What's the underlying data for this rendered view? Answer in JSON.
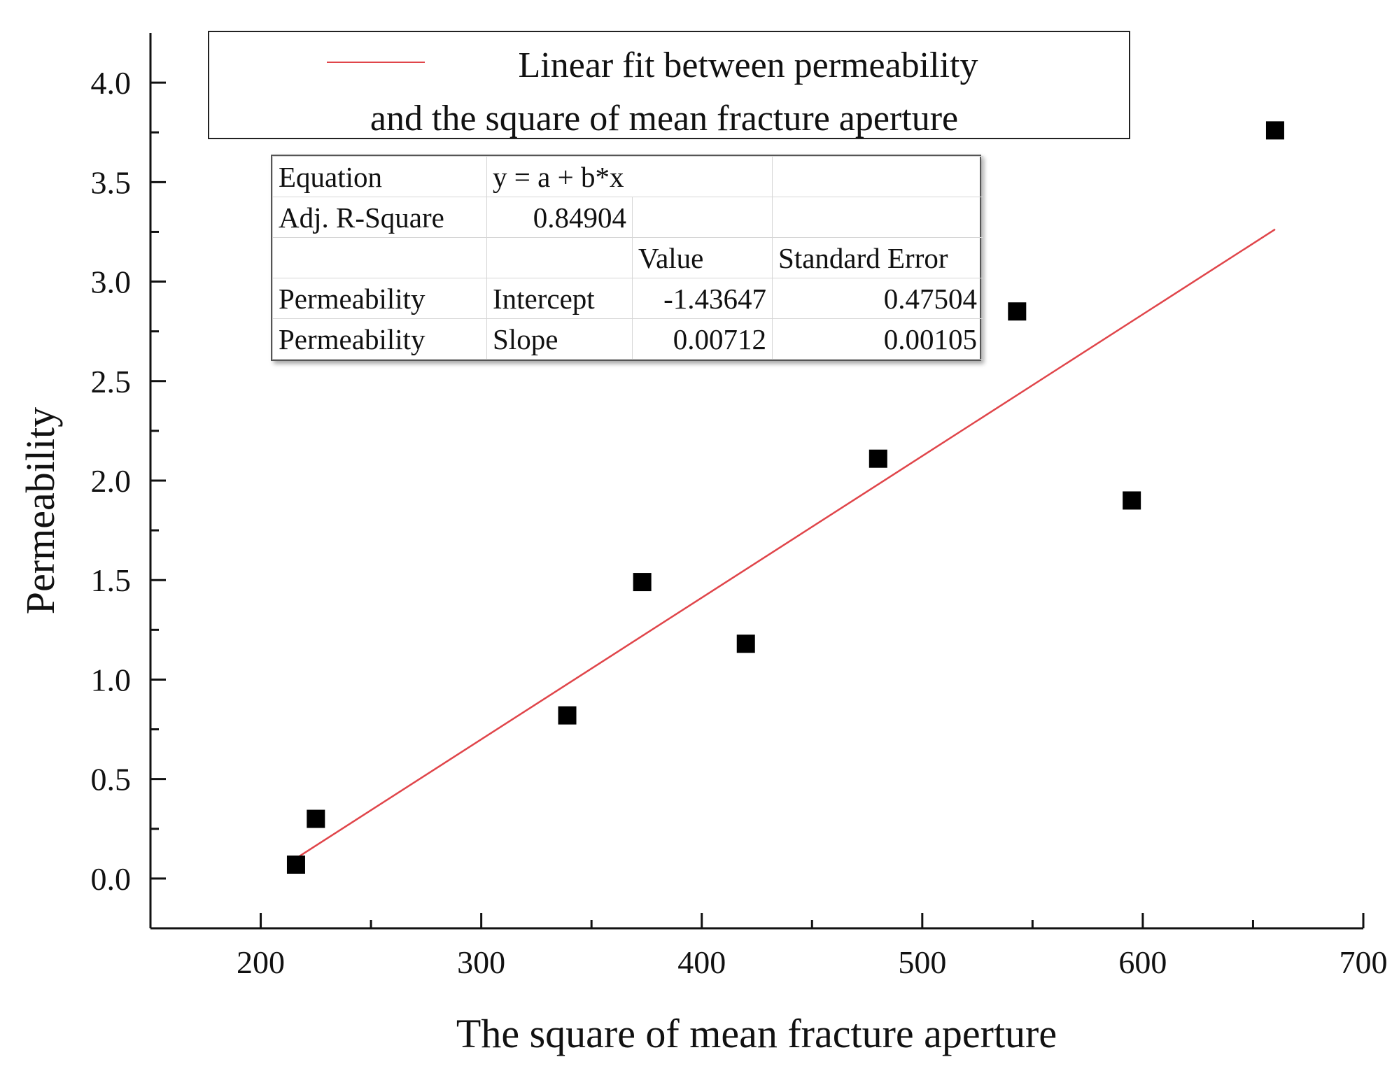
{
  "chart_data": {
    "type": "scatter",
    "xlabel": "The square of mean fracture aperture",
    "ylabel": "Permeability",
    "xlim": [
      150,
      700
    ],
    "ylim": [
      -0.25,
      4.25
    ],
    "x_ticks": [
      "200",
      "300",
      "400",
      "500",
      "600",
      "700"
    ],
    "y_ticks": [
      "0.0",
      "0.5",
      "1.0",
      "1.5",
      "2.0",
      "2.5",
      "3.0",
      "3.5",
      "4.0"
    ],
    "series": [
      {
        "name": "Permeability",
        "marker": "square",
        "color": "#000000",
        "points": [
          {
            "x": 216,
            "y": 0.07
          },
          {
            "x": 225,
            "y": 0.3
          },
          {
            "x": 339,
            "y": 0.82
          },
          {
            "x": 373,
            "y": 1.49
          },
          {
            "x": 420,
            "y": 1.18
          },
          {
            "x": 480,
            "y": 2.11
          },
          {
            "x": 543,
            "y": 2.85
          },
          {
            "x": 595,
            "y": 1.9
          },
          {
            "x": 660,
            "y": 3.76
          }
        ]
      }
    ],
    "fit": {
      "name": "Linear fit between permeability and the square of mean fracture aperture",
      "color": "#e0454a",
      "intercept": -1.43647,
      "slope": 0.00712,
      "x_range": [
        216,
        660
      ]
    }
  },
  "legend": {
    "line1": "Linear fit between permeability",
    "line2": "and the square of mean fracture aperture"
  },
  "stats_table": {
    "rows": [
      [
        "Equation",
        "y = a + b*x",
        "",
        ""
      ],
      [
        "Adj. R-Square",
        "0.84904",
        "",
        ""
      ],
      [
        "",
        "",
        "Value",
        "Standard Error"
      ],
      [
        "Permeability",
        "Intercept",
        "-1.43647",
        "0.47504"
      ],
      [
        "Permeability",
        "Slope",
        "0.00712",
        "0.00105"
      ]
    ]
  }
}
